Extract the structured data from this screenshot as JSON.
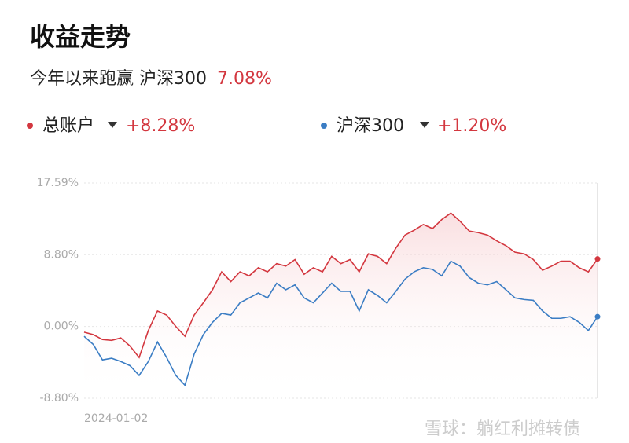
{
  "header": {
    "title": "收益走势",
    "subtitle": "今年以来跑赢 沪深300",
    "excess": "7.08%"
  },
  "watermark": "雪球：躺红利摊转债",
  "chart_data": {
    "type": "line",
    "categories": [
      "2024-01-02",
      null,
      null,
      null,
      null,
      null,
      null,
      null,
      null,
      null,
      null,
      null,
      null,
      null,
      null,
      null,
      null,
      null,
      null,
      null,
      null,
      null,
      null,
      null,
      null,
      null,
      null,
      null,
      null,
      null,
      null,
      null,
      null,
      null,
      null,
      null,
      null,
      null,
      null,
      null,
      null,
      null,
      null,
      null,
      null,
      null,
      null,
      null,
      null,
      null,
      null,
      null,
      null,
      null,
      null,
      null,
      null
    ],
    "series": [
      {
        "name": "总账户",
        "color": "#d3373f",
        "return_label": "+8.28%",
        "values": [
          -0.7,
          -1.0,
          -1.6,
          -1.7,
          -1.4,
          -2.4,
          -3.8,
          -0.5,
          1.9,
          1.4,
          0,
          -1.2,
          1.4,
          2.9,
          4.5,
          6.7,
          5.5,
          6.7,
          6.2,
          7.2,
          6.7,
          7.7,
          7.4,
          8.2,
          6.4,
          7.2,
          6.7,
          8.6,
          7.7,
          8.2,
          6.7,
          8.9,
          8.6,
          7.7,
          9.6,
          11.2,
          11.8,
          12.5,
          12.0,
          13.1,
          13.9,
          12.9,
          11.7,
          11.5,
          11.2,
          10.5,
          9.9,
          9.1,
          8.9,
          8.2,
          6.9,
          7.4,
          8.0,
          8.0,
          7.2,
          6.7,
          8.28
        ]
      },
      {
        "name": "沪深300",
        "color": "#3b7dc4",
        "return_label": "+1.20%",
        "values": [
          -1.2,
          -2.2,
          -4.1,
          -3.9,
          -4.3,
          -4.8,
          -6.0,
          -4.3,
          -1.9,
          -3.8,
          -6.0,
          -7.2,
          -3.4,
          -1.0,
          0.5,
          1.6,
          1.4,
          2.9,
          3.5,
          4.1,
          3.5,
          5.3,
          4.5,
          5.1,
          3.5,
          2.9,
          4.1,
          5.3,
          4.3,
          4.3,
          1.9,
          4.5,
          3.8,
          2.9,
          4.3,
          5.8,
          6.7,
          7.2,
          7.0,
          6.2,
          8.0,
          7.4,
          6.0,
          5.3,
          5.1,
          5.5,
          4.5,
          3.5,
          3.3,
          3.2,
          1.9,
          1.0,
          1.0,
          1.2,
          0.5,
          -0.5,
          1.2
        ]
      }
    ],
    "ylim": [
      -8.8,
      17.59
    ],
    "yticks": [
      {
        "value": -8.8,
        "label": "-8.80%"
      },
      {
        "value": 0,
        "label": "0.00%"
      },
      {
        "value": 8.8,
        "label": "8.80%"
      },
      {
        "value": 17.59,
        "label": "17.59%"
      }
    ],
    "grid": true
  }
}
